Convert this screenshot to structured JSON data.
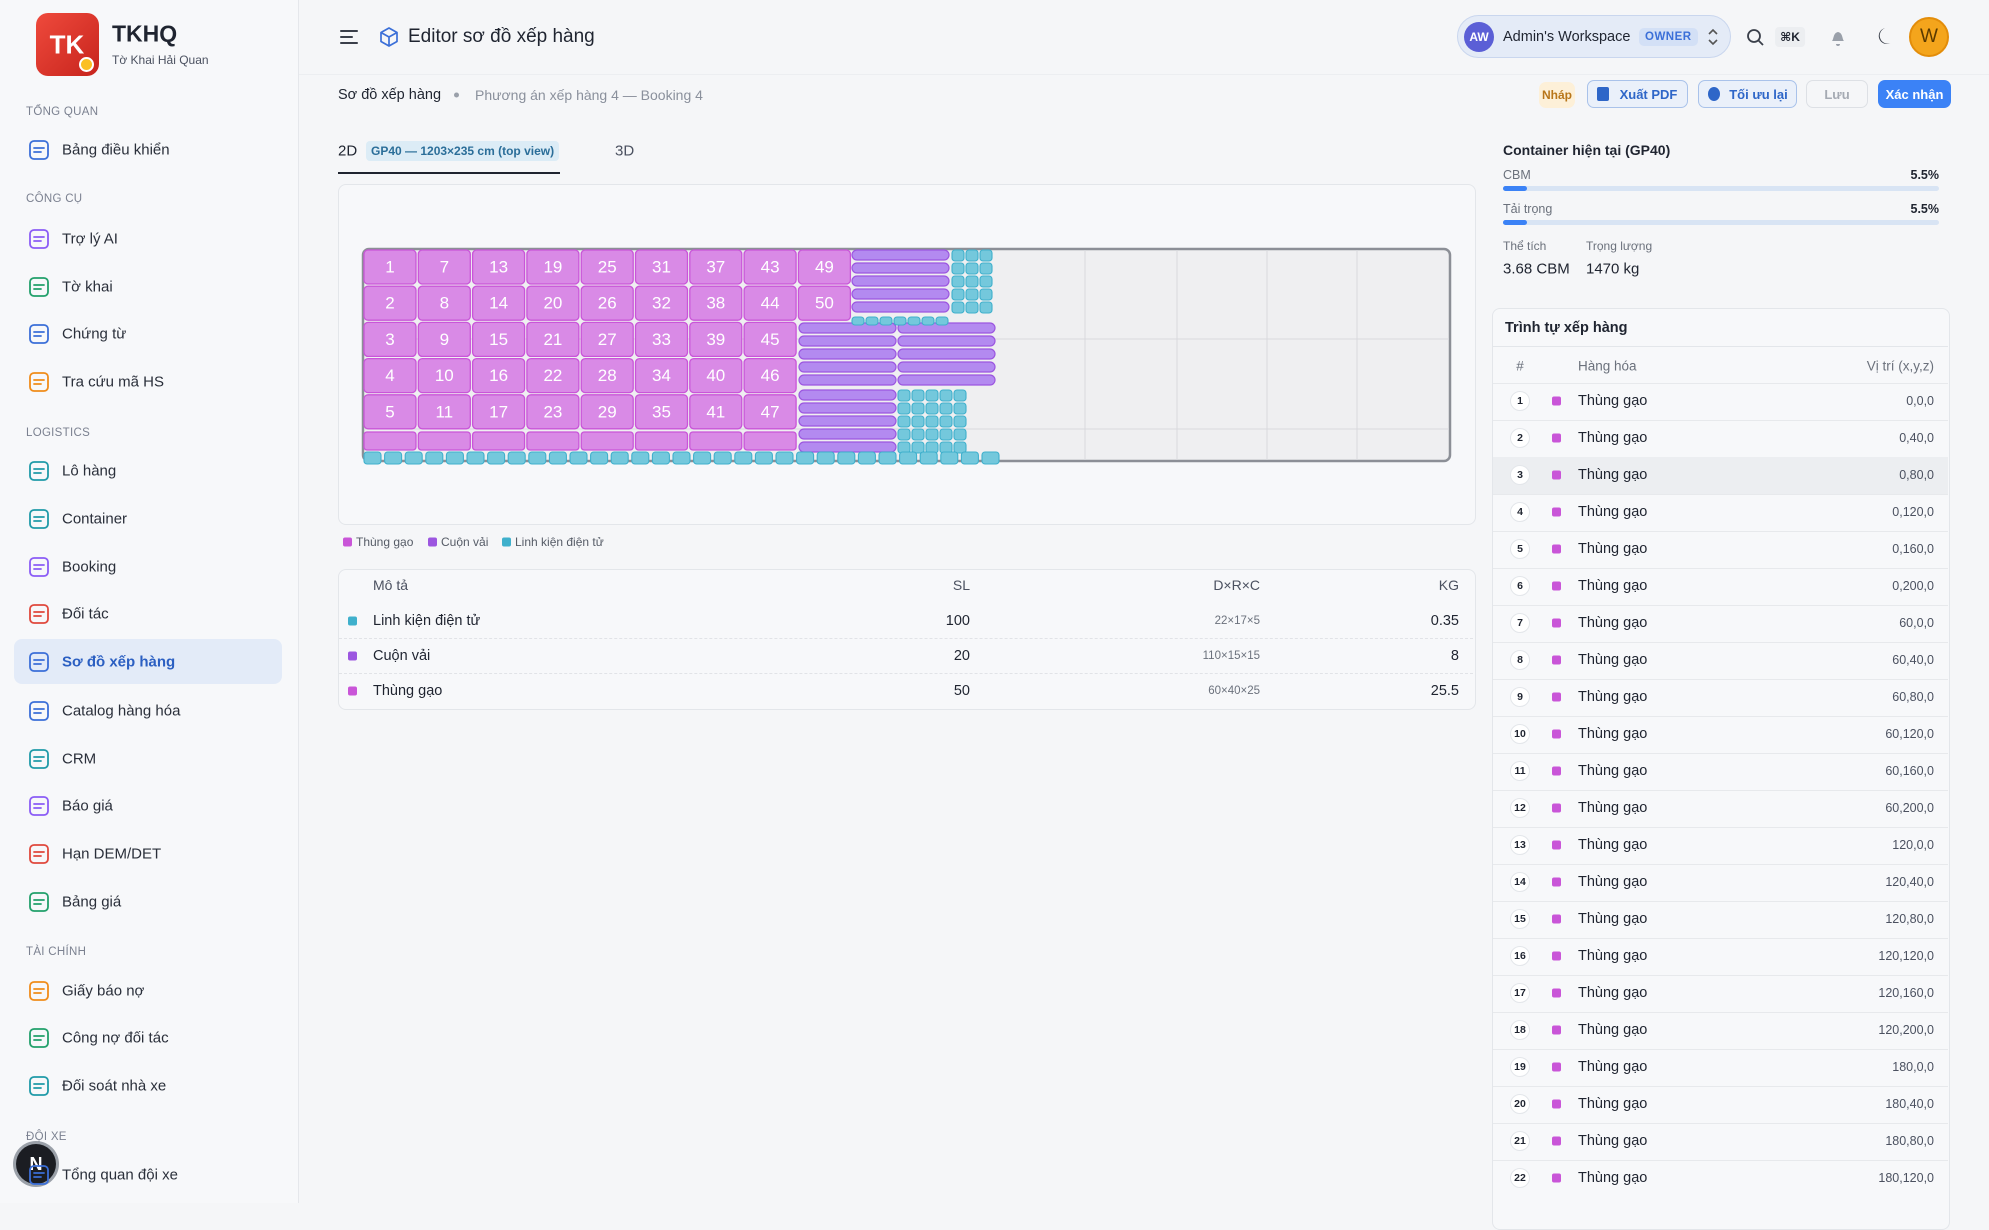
{
  "sidebar": {
    "brand": "TKHQ",
    "logo": "TK",
    "subtitle": "Tờ Khai Hải Quan",
    "sections": [
      {
        "title": "TỔNG QUAN",
        "items": [
          {
            "label": "Bảng điều khiển"
          }
        ]
      },
      {
        "title": "CÔNG CỤ",
        "items": [
          {
            "label": "Trợ lý AI"
          },
          {
            "label": "Tờ khai"
          },
          {
            "label": "Chứng từ"
          },
          {
            "label": "Tra cứu mã HS"
          }
        ]
      },
      {
        "title": "LOGISTICS",
        "items": [
          {
            "label": "Lô hàng"
          },
          {
            "label": "Container"
          },
          {
            "label": "Booking"
          },
          {
            "label": "Đối tác"
          },
          {
            "label": "Sơ đồ xếp hàng",
            "active": true
          },
          {
            "label": "Catalog hàng hóa"
          },
          {
            "label": "CRM"
          },
          {
            "label": "Báo giá"
          },
          {
            "label": "Hạn DEM/DET"
          },
          {
            "label": "Bảng giá"
          }
        ]
      },
      {
        "title": "TÀI CHÍNH",
        "items": [
          {
            "label": "Giấy báo nợ"
          },
          {
            "label": "Công nợ đối tác"
          },
          {
            "label": "Đối soát nhà xe"
          }
        ]
      },
      {
        "title": "ĐỘI XE",
        "items": [
          {
            "label": "Tổng quan đội xe"
          }
        ]
      }
    ],
    "badge": "N"
  },
  "header": {
    "title": "Editor sơ đồ xếp hàng",
    "workspace": {
      "initials": "AW",
      "name": "Admin's Workspace",
      "role": "OWNER"
    },
    "shortcut": "⌘K",
    "avatar": "W"
  },
  "breadcrumb": [
    "Sơ đồ xếp hàng",
    "Phương án xếp hàng 4 — Booking 4"
  ],
  "actions": {
    "status": "Nháp",
    "buttons": [
      "Xuất PDF",
      "Tối ưu lại",
      "Lưu",
      "Xác nhận"
    ]
  },
  "tabs": {
    "items": [
      "2D",
      "3D"
    ],
    "badge": "GP40 — 1203×235 cm (top view)"
  },
  "canvas": {
    "box_labels": [
      1,
      2,
      3,
      4,
      5,
      7,
      8,
      9,
      10,
      11,
      13,
      14,
      15,
      16,
      17,
      19,
      20,
      21,
      22,
      23,
      25,
      26,
      27,
      28,
      29,
      31,
      32,
      33,
      34,
      35,
      37,
      38,
      39,
      40,
      41,
      43,
      44,
      45,
      46,
      47,
      49,
      50
    ]
  },
  "legend": [
    {
      "name": "Thùng gạo",
      "color": "#c955d8"
    },
    {
      "name": "Cuộn vải",
      "color": "#9c56e0"
    },
    {
      "name": "Linh kiện điện tử",
      "color": "#3fb0cc"
    }
  ],
  "items_table": {
    "columns": [
      "Mô tả",
      "SL",
      "D×R×C",
      "KG"
    ],
    "rows": [
      [
        "Linh kiện điện tử",
        100,
        "22×17×5",
        0.35
      ],
      [
        "Cuộn vải",
        20,
        "110×15×15",
        8
      ],
      [
        "Thùng gạo",
        50,
        "60×40×25",
        25.5
      ]
    ]
  },
  "container": {
    "title": "Container hiện tại (GP40)",
    "metrics": [
      {
        "label": "CBM",
        "value": "5.5%"
      },
      {
        "label": "Tải trọng",
        "value": "5.5%"
      }
    ],
    "totals": [
      {
        "label": "Thể tích",
        "value": "3.68 CBM"
      },
      {
        "label": "Trọng lượng",
        "value": "1470 kg"
      }
    ]
  },
  "sequence": {
    "title": "Trình tự xếp hàng",
    "columns": [
      "#",
      "Hàng hóa",
      "Vị trí (x,y,z)"
    ],
    "rows": [
      [
        1,
        "Thùng gạo",
        "0,0,0"
      ],
      [
        2,
        "Thùng gạo",
        "0,40,0"
      ],
      [
        3,
        "Thùng gạo",
        "0,80,0"
      ],
      [
        4,
        "Thùng gạo",
        "0,120,0"
      ],
      [
        5,
        "Thùng gạo",
        "0,160,0"
      ],
      [
        6,
        "Thùng gạo",
        "0,200,0"
      ],
      [
        7,
        "Thùng gạo",
        "60,0,0"
      ],
      [
        8,
        "Thùng gạo",
        "60,40,0"
      ],
      [
        9,
        "Thùng gạo",
        "60,80,0"
      ],
      [
        10,
        "Thùng gạo",
        "60,120,0"
      ],
      [
        11,
        "Thùng gạo",
        "60,160,0"
      ],
      [
        12,
        "Thùng gạo",
        "60,200,0"
      ],
      [
        13,
        "Thùng gạo",
        "120,0,0"
      ],
      [
        14,
        "Thùng gạo",
        "120,40,0"
      ],
      [
        15,
        "Thùng gạo",
        "120,80,0"
      ],
      [
        16,
        "Thùng gạo",
        "120,120,0"
      ],
      [
        17,
        "Thùng gạo",
        "120,160,0"
      ],
      [
        18,
        "Thùng gạo",
        "120,200,0"
      ],
      [
        19,
        "Thùng gạo",
        "180,0,0"
      ],
      [
        20,
        "Thùng gạo",
        "180,40,0"
      ],
      [
        21,
        "Thùng gạo",
        "180,80,0"
      ],
      [
        22,
        "Thùng gạo",
        "180,120,0"
      ]
    ]
  }
}
